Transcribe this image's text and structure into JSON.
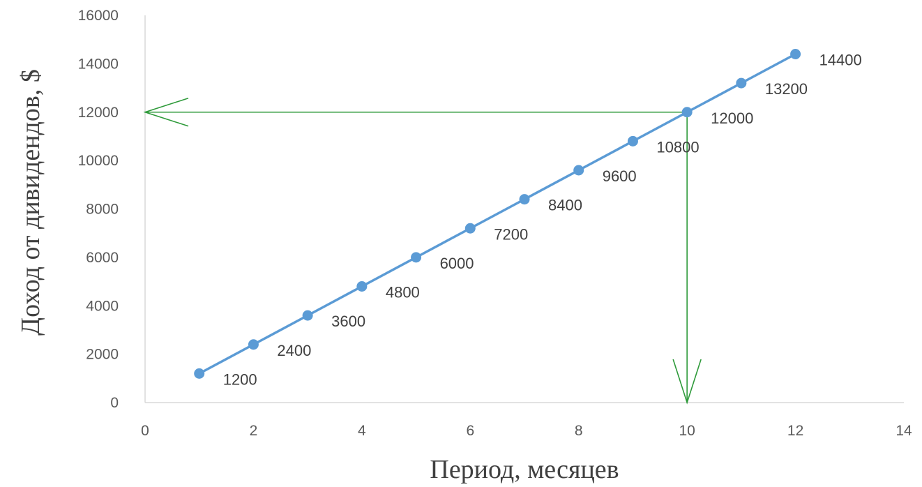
{
  "chart_data": {
    "type": "scatter",
    "xlabel": "Период, месяцев",
    "ylabel": "Доход от дивидендов, $",
    "xlim": [
      0,
      14
    ],
    "ylim": [
      0,
      16000
    ],
    "x_ticks": [
      "0",
      "2",
      "4",
      "6",
      "8",
      "10",
      "12",
      "14"
    ],
    "y_ticks": [
      "0",
      "2000",
      "4000",
      "6000",
      "8000",
      "10000",
      "12000",
      "14000",
      "16000"
    ],
    "grid": false,
    "legend": "none",
    "series": [
      {
        "x": [
          1,
          2,
          3,
          4,
          5,
          6,
          7,
          8,
          9,
          10,
          11,
          12
        ],
        "y": [
          1200,
          2400,
          3600,
          4800,
          6000,
          7200,
          8400,
          9600,
          10800,
          12000,
          13200,
          14400
        ],
        "labels": [
          "1200",
          "2400",
          "3600",
          "4800",
          "6000",
          "7200",
          "8400",
          "9600",
          "10800",
          "12000",
          "13200",
          "14400"
        ],
        "color": "#5b9bd5",
        "line": true,
        "markers": true
      }
    ],
    "annotations": [
      {
        "type": "arrow",
        "from": [
          10,
          12000
        ],
        "to": [
          0,
          12000
        ],
        "color": "#2e9a3a"
      },
      {
        "type": "arrow",
        "from": [
          10,
          12000
        ],
        "to": [
          10,
          0
        ],
        "color": "#2e9a3a"
      }
    ]
  }
}
